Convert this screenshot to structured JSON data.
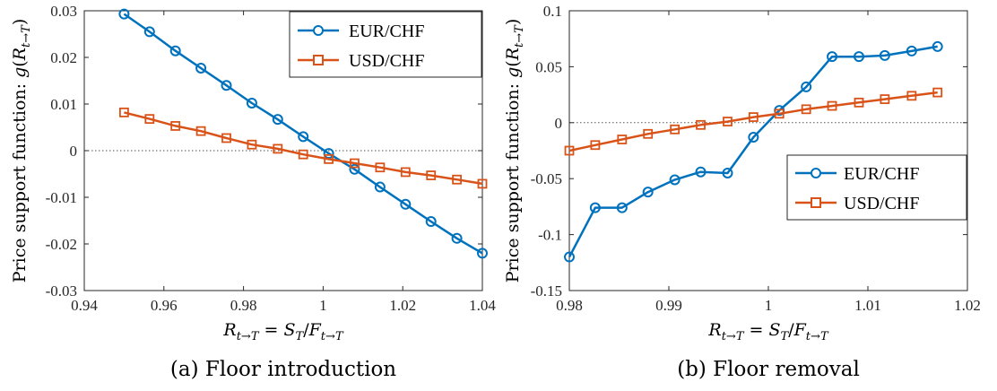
{
  "series_styles": {
    "EUR/CHF": {
      "color": "#0072BD",
      "marker": "circle"
    },
    "USD/CHF": {
      "color": "#D95319",
      "marker": "square"
    }
  },
  "chart_data": [
    {
      "type": "line",
      "caption": "(a) Floor introduction",
      "xlabel": "R_{t→T} = S_T/F_{t→T}",
      "ylabel": "Price support function: g(R_{t→T})",
      "xlim": [
        0.94,
        1.04
      ],
      "ylim": [
        -0.03,
        0.03
      ],
      "xticks": [
        0.94,
        0.96,
        0.98,
        1,
        1.02,
        1.04
      ],
      "xtick_labels": [
        "0.94",
        "0.96",
        "0.98",
        "1",
        "1.02",
        "1.04"
      ],
      "yticks": [
        -0.03,
        -0.02,
        -0.01,
        0,
        0.01,
        0.02,
        0.03
      ],
      "ytick_labels": [
        "-0.03",
        "-0.02",
        "-0.01",
        "0",
        "0.01",
        "0.02",
        "0.03"
      ],
      "zero_line": true,
      "legend_position": "top-right",
      "series": [
        {
          "name": "EUR/CHF",
          "x": [
            0.95,
            0.9564,
            0.9629,
            0.9693,
            0.9757,
            0.9821,
            0.9886,
            0.995,
            1.0014,
            1.0079,
            1.0143,
            1.0207,
            1.0271,
            1.0336,
            1.04
          ],
          "y": [
            0.0293,
            0.0255,
            0.0214,
            0.0177,
            0.014,
            0.0102,
            0.0067,
            0.003,
            -0.0006,
            -0.004,
            -0.0078,
            -0.0115,
            -0.0152,
            -0.0188,
            -0.022
          ]
        },
        {
          "name": "USD/CHF",
          "x": [
            0.95,
            0.9564,
            0.9629,
            0.9693,
            0.9757,
            0.9821,
            0.9886,
            0.995,
            1.0014,
            1.0079,
            1.0143,
            1.0207,
            1.0271,
            1.0336,
            1.04
          ],
          "y": [
            0.0082,
            0.0068,
            0.0053,
            0.0042,
            0.0027,
            0.0013,
            0.0004,
            -0.0008,
            -0.0018,
            -0.0027,
            -0.0036,
            -0.0046,
            -0.0053,
            -0.0062,
            -0.0071
          ]
        }
      ]
    },
    {
      "type": "line",
      "caption": "(b) Floor removal",
      "xlabel": "R_{t→T} = S_T/F_{t→T}",
      "ylabel": "Price support function: g(R_{t→T})",
      "xlim": [
        0.98,
        1.02
      ],
      "ylim": [
        -0.15,
        0.1
      ],
      "xticks": [
        0.98,
        0.99,
        1,
        1.01,
        1.02
      ],
      "xtick_labels": [
        "0.98",
        "0.99",
        "1",
        "1.01",
        "1.02"
      ],
      "yticks": [
        -0.15,
        -0.1,
        -0.05,
        0,
        0.05,
        0.1
      ],
      "ytick_labels": [
        "-0.15",
        "-0.1",
        "-0.05",
        "0",
        "0.05",
        "0.1"
      ],
      "zero_line": true,
      "legend_position": "middle-right",
      "series": [
        {
          "name": "EUR/CHF",
          "x": [
            0.98,
            0.9826,
            0.9853,
            0.9879,
            0.9906,
            0.9932,
            0.9959,
            0.9985,
            1.0011,
            1.0038,
            1.0064,
            1.0091,
            1.0117,
            1.0144,
            1.017
          ],
          "y": [
            -0.12,
            -0.076,
            -0.076,
            -0.062,
            -0.051,
            -0.044,
            -0.045,
            -0.013,
            0.011,
            0.032,
            0.059,
            0.059,
            0.06,
            0.064,
            0.068
          ]
        },
        {
          "name": "USD/CHF",
          "x": [
            0.98,
            0.9826,
            0.9853,
            0.9879,
            0.9906,
            0.9932,
            0.9959,
            0.9985,
            1.0011,
            1.0038,
            1.0064,
            1.0091,
            1.0117,
            1.0144,
            1.017
          ],
          "y": [
            -0.025,
            -0.02,
            -0.015,
            -0.01,
            -0.006,
            -0.002,
            0.001,
            0.005,
            0.008,
            0.012,
            0.015,
            0.018,
            0.021,
            0.024,
            0.027
          ]
        }
      ]
    }
  ]
}
